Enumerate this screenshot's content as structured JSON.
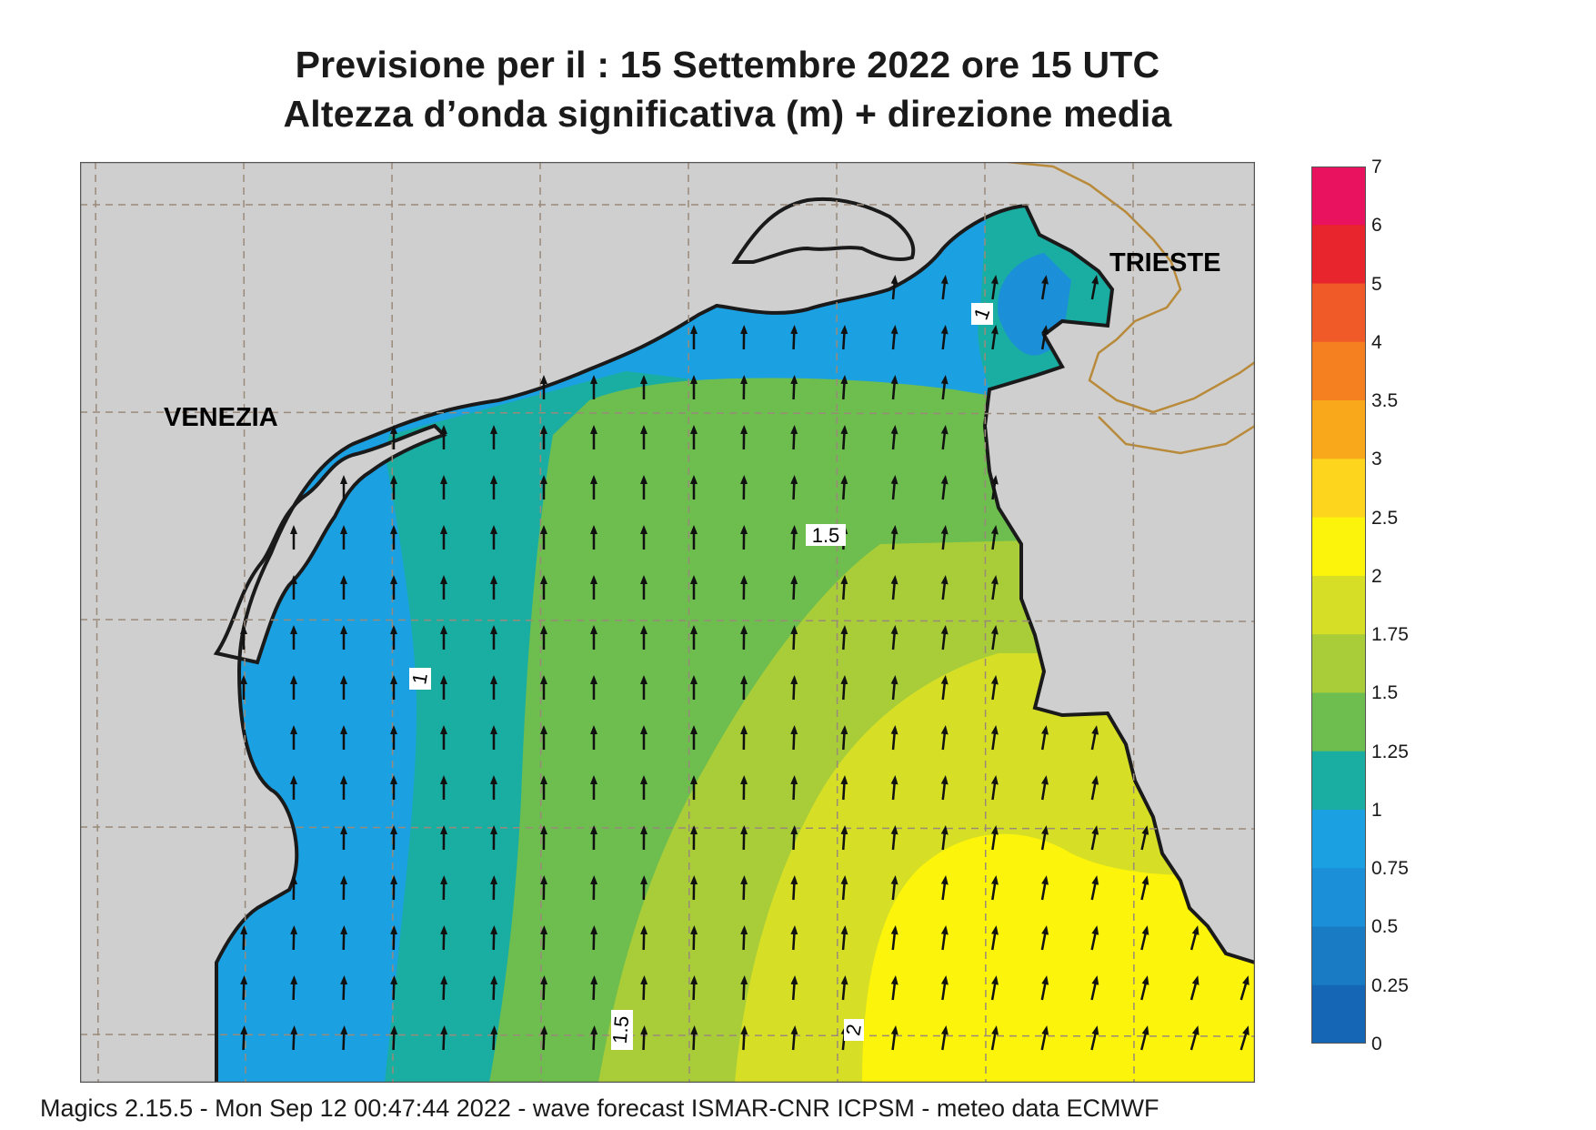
{
  "header": {
    "title_line1": "Previsione per il  :  15 Settembre 2022   ore 15 UTC",
    "title_line2": "Altezza d’onda significativa (m) + direzione media"
  },
  "map": {
    "cities": [
      {
        "name": "VENEZIA"
      },
      {
        "name": "TRIESTE"
      }
    ],
    "contour_labels": [
      "1",
      "1",
      "1.5",
      "1.5",
      "2"
    ],
    "colors": {
      "land": "#cfcfcf",
      "coast": "#1a1a1a",
      "border": "#b88a3a",
      "grid": "#9a8a7a"
    }
  },
  "legend": {
    "title": "",
    "levels": [
      {
        "value": "7",
        "color": "#e8125e"
      },
      {
        "value": "6",
        "color": "#e8242c"
      },
      {
        "value": "5",
        "color": "#ef5a28"
      },
      {
        "value": "4",
        "color": "#f4801f"
      },
      {
        "value": "3.5",
        "color": "#f8a81a"
      },
      {
        "value": "3",
        "color": "#fdd51c"
      },
      {
        "value": "2.5",
        "color": "#fcf40a"
      },
      {
        "value": "2",
        "color": "#d6df26"
      },
      {
        "value": "1.75",
        "color": "#a8cd39"
      },
      {
        "value": "1.5",
        "color": "#6dbd4f"
      },
      {
        "value": "1.25",
        "color": "#1aaea3"
      },
      {
        "value": "1",
        "color": "#1ba0e2"
      },
      {
        "value": "0.75",
        "color": "#1b8fd8"
      },
      {
        "value": "0.5",
        "color": "#1a7bc5"
      },
      {
        "value": "0.25",
        "color": "#1567b6"
      },
      {
        "value": "0",
        "color": "#1567b6"
      }
    ]
  },
  "footer": {
    "text": "Magics 2.15.5 - Mon Sep 12 00:47:44 2022 - wave forecast  ISMAR-CNR  ICPSM - meteo data   ECMWF"
  }
}
